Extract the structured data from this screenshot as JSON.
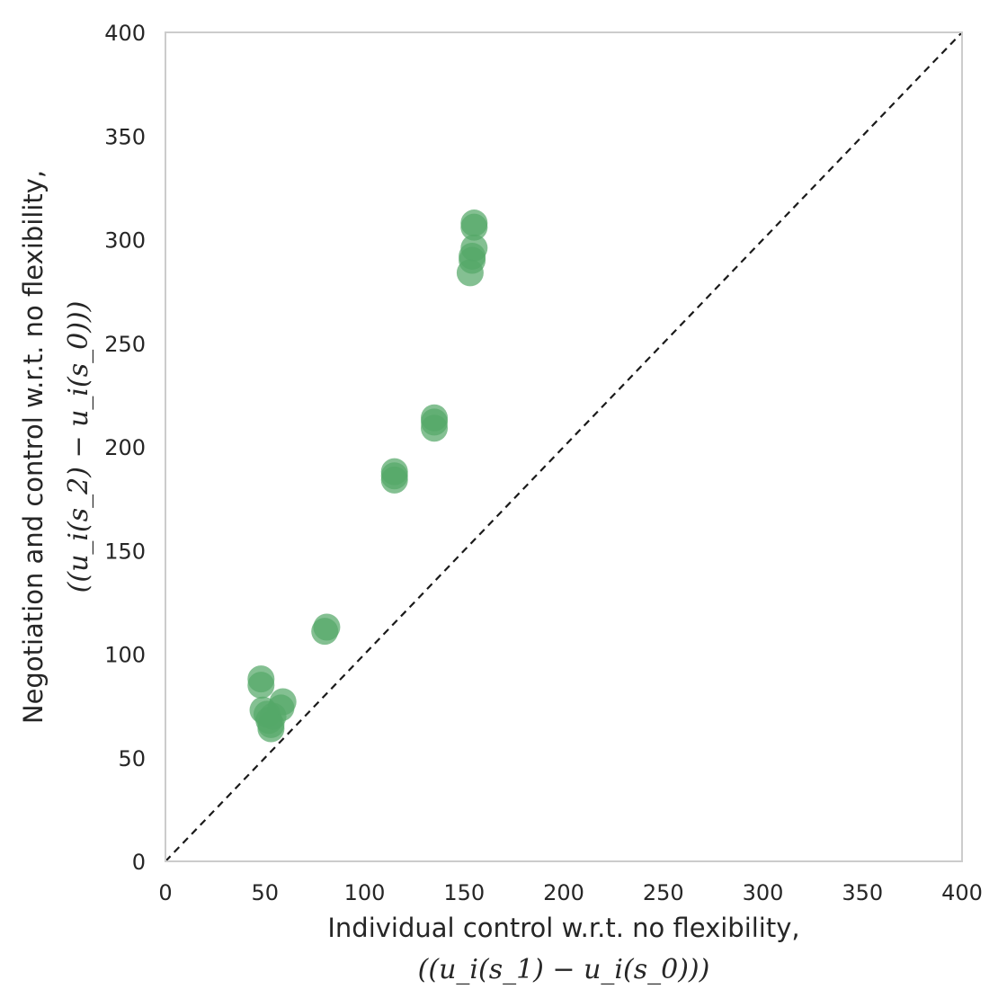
{
  "chart_data": {
    "type": "scatter",
    "title": "",
    "xlabel": "Individual control w.r.t. no flexibility,",
    "xlabel_math": "((u_i(s_1) − u_i(s_0)))",
    "ylabel": "Negotiation and control w.r.t. no flexibility,",
    "ylabel_math": "((u_i(s_2) − u_i(s_0)))",
    "xlim": [
      0,
      400
    ],
    "ylim": [
      0,
      400
    ],
    "xticks": [
      "0",
      "50",
      "100",
      "150",
      "200",
      "250",
      "300",
      "350",
      "400"
    ],
    "yticks": [
      "0",
      "50",
      "100",
      "150",
      "200",
      "250",
      "300",
      "350",
      "400"
    ],
    "grid": false,
    "marker_color": "#55a868",
    "reference_line": {
      "style": "dashed",
      "color": "#1a1a1a",
      "from": [
        0,
        0
      ],
      "to": [
        400,
        400
      ]
    },
    "series": [
      {
        "name": "points",
        "x": [
          48,
          48,
          49,
          51,
          52,
          53,
          53,
          54,
          58,
          59,
          80,
          81,
          115,
          115,
          115,
          135,
          135,
          135,
          153,
          154,
          154,
          155,
          155,
          155
        ],
        "y": [
          85,
          88,
          73,
          71,
          68,
          64,
          66,
          70,
          74,
          77,
          111,
          113,
          184,
          186,
          188,
          209,
          212,
          214,
          284,
          290,
          292,
          296,
          306,
          308
        ]
      }
    ]
  }
}
